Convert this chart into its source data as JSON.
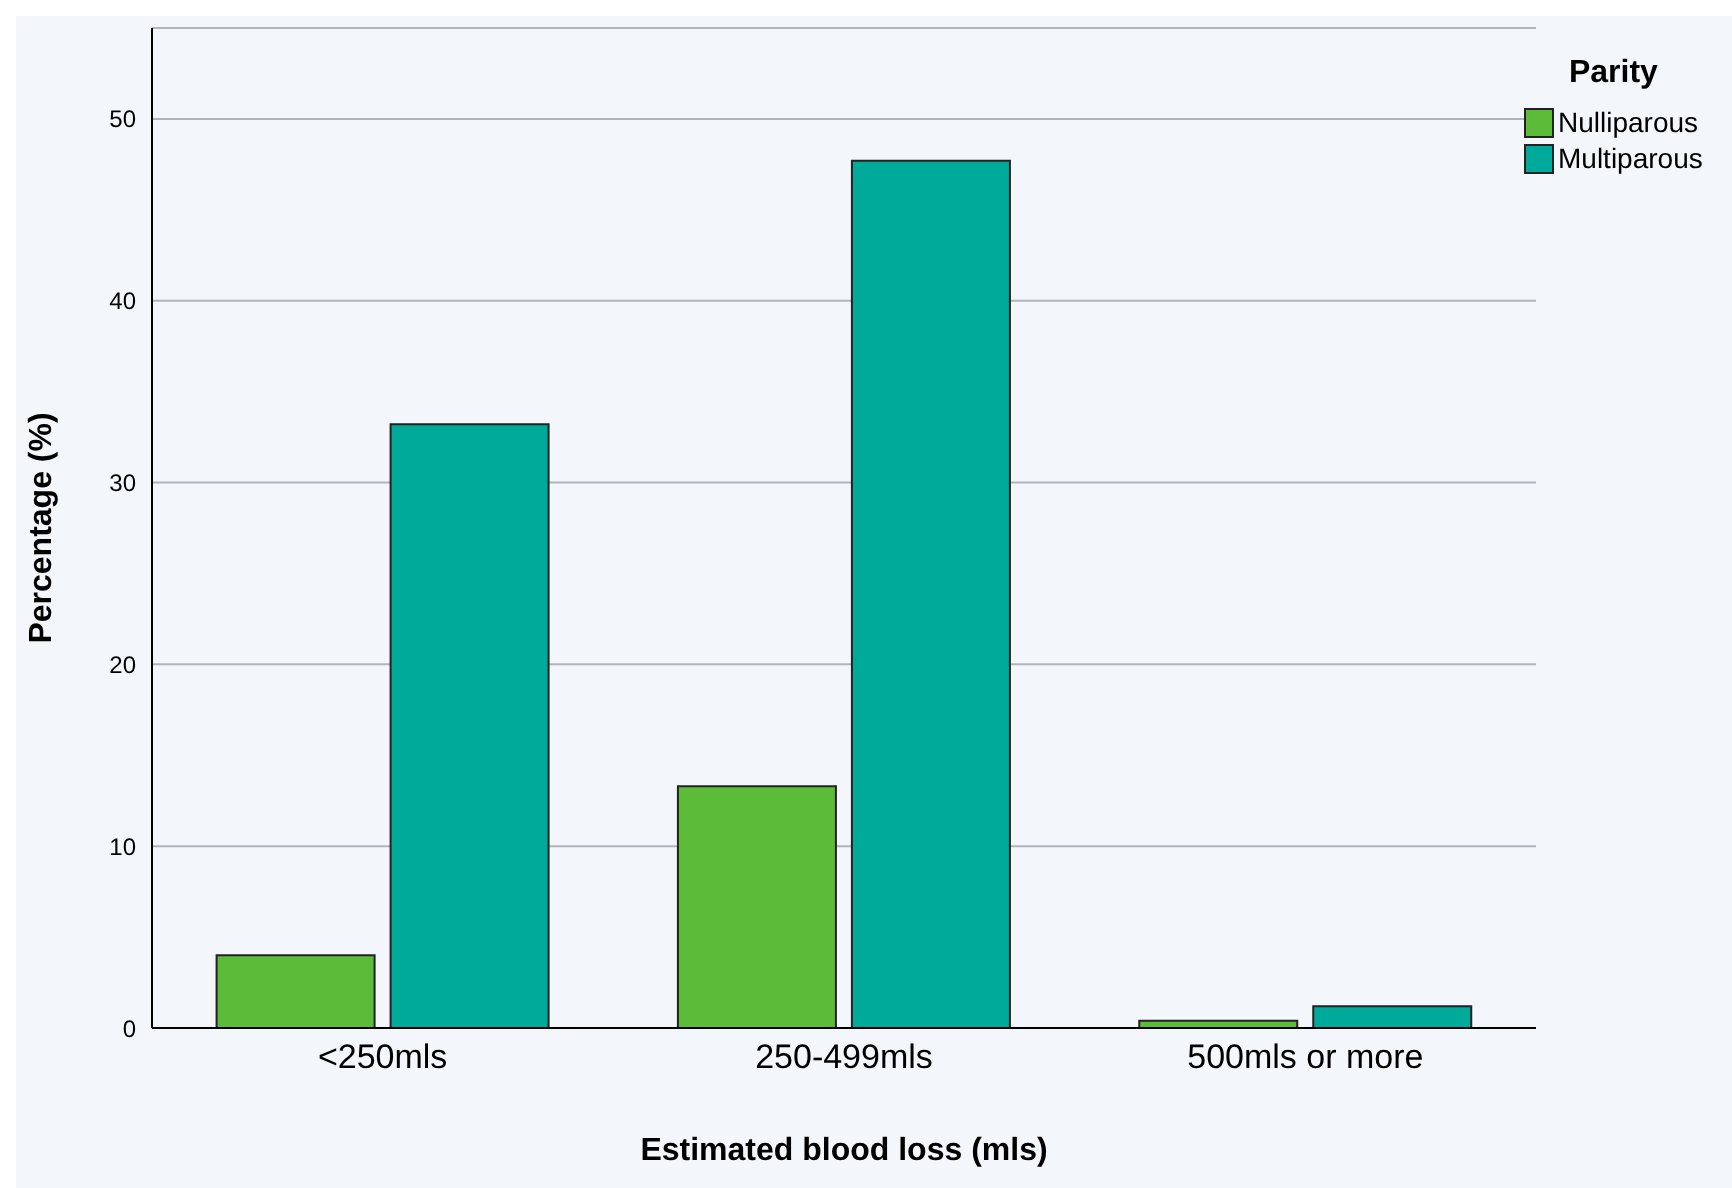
{
  "chart_data": {
    "type": "bar",
    "xlabel": "Estimated blood loss (mls)",
    "ylabel": "Percentage (%)",
    "legend_title": "Parity",
    "categories": [
      "<250mls",
      "250-499mls",
      "500mls or more"
    ],
    "series": [
      {
        "name": "Nulliparous",
        "color": "#5dbb3a",
        "values": [
          4.0,
          13.3,
          0.4
        ]
      },
      {
        "name": "Multiparous",
        "color": "#00aa9a",
        "values": [
          33.2,
          47.7,
          1.2
        ]
      }
    ],
    "ylim": [
      0,
      55
    ],
    "yticks": [
      0,
      10,
      20,
      30,
      40,
      50
    ],
    "grid": "y",
    "legend": "top right"
  }
}
